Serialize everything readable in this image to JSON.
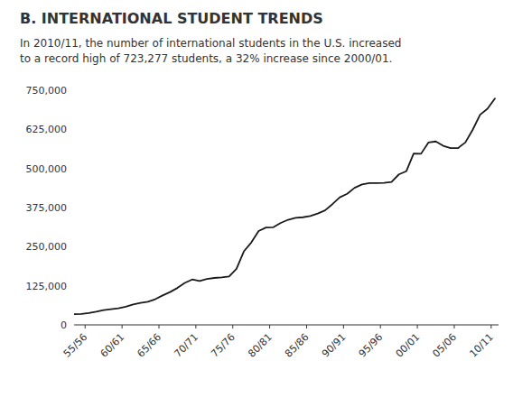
{
  "chart_data": {
    "type": "line",
    "title": "B.  INTERNATIONAL STUDENT TRENDS",
    "subtitle": "In 2010/11, the number of international students in the U.S. increased\nto a record high of 723,277 students, a 32% increase since 2000/01.",
    "x": [
      1954,
      1955,
      1956,
      1957,
      1958,
      1959,
      1960,
      1961,
      1962,
      1963,
      1964,
      1965,
      1966,
      1967,
      1968,
      1969,
      1970,
      1971,
      1972,
      1973,
      1974,
      1975,
      1976,
      1977,
      1978,
      1979,
      1980,
      1981,
      1982,
      1983,
      1984,
      1985,
      1986,
      1987,
      1988,
      1989,
      1990,
      1991,
      1992,
      1993,
      1994,
      1995,
      1996,
      1997,
      1998,
      1999,
      2000,
      2001,
      2002,
      2003,
      2004,
      2005,
      2006,
      2007,
      2008,
      2009,
      2010,
      2011
    ],
    "values": [
      34000,
      35000,
      38000,
      42000,
      47000,
      50000,
      53000,
      58000,
      65000,
      70000,
      74000,
      82000,
      94000,
      105000,
      118000,
      134000,
      145000,
      140000,
      147000,
      150000,
      152000,
      155000,
      179000,
      235000,
      263000,
      300000,
      311000,
      312000,
      326000,
      336000,
      342000,
      344000,
      348000,
      356000,
      366000,
      386000,
      408000,
      419000,
      438000,
      449000,
      453000,
      453000,
      454000,
      457000,
      481000,
      491000,
      547867,
      547000,
      582996,
      586323,
      572509,
      565039,
      564766,
      582984,
      623805,
      671616,
      690923,
      723277
    ],
    "color": "#1a1a1a",
    "xlim": [
      1954,
      2011.5
    ],
    "xticks": [
      {
        "value": 1955.5,
        "label": "55/56"
      },
      {
        "value": 1960.5,
        "label": "60/61"
      },
      {
        "value": 1965.5,
        "label": "65/66"
      },
      {
        "value": 1970.5,
        "label": "70/71"
      },
      {
        "value": 1975.5,
        "label": "75/76"
      },
      {
        "value": 1980.5,
        "label": "80/81"
      },
      {
        "value": 1985.5,
        "label": "85/86"
      },
      {
        "value": 1990.5,
        "label": "90/91"
      },
      {
        "value": 1995.5,
        "label": "95/96"
      },
      {
        "value": 2000.5,
        "label": "00/01"
      },
      {
        "value": 2005.5,
        "label": "05/06"
      },
      {
        "value": 2010.5,
        "label": "10/11"
      }
    ],
    "ylim": [
      0,
      750000
    ],
    "yticks": [
      0,
      {
        "value": 125000,
        "label": "125,000"
      },
      {
        "value": 250000,
        "label": "250,000"
      },
      {
        "value": 375000,
        "label": "375,000"
      },
      {
        "value": 500000,
        "label": "500,000"
      },
      {
        "value": 625000,
        "label": "625,000"
      },
      {
        "value": 750000,
        "label": "750,000"
      }
    ],
    "grid": false
  }
}
